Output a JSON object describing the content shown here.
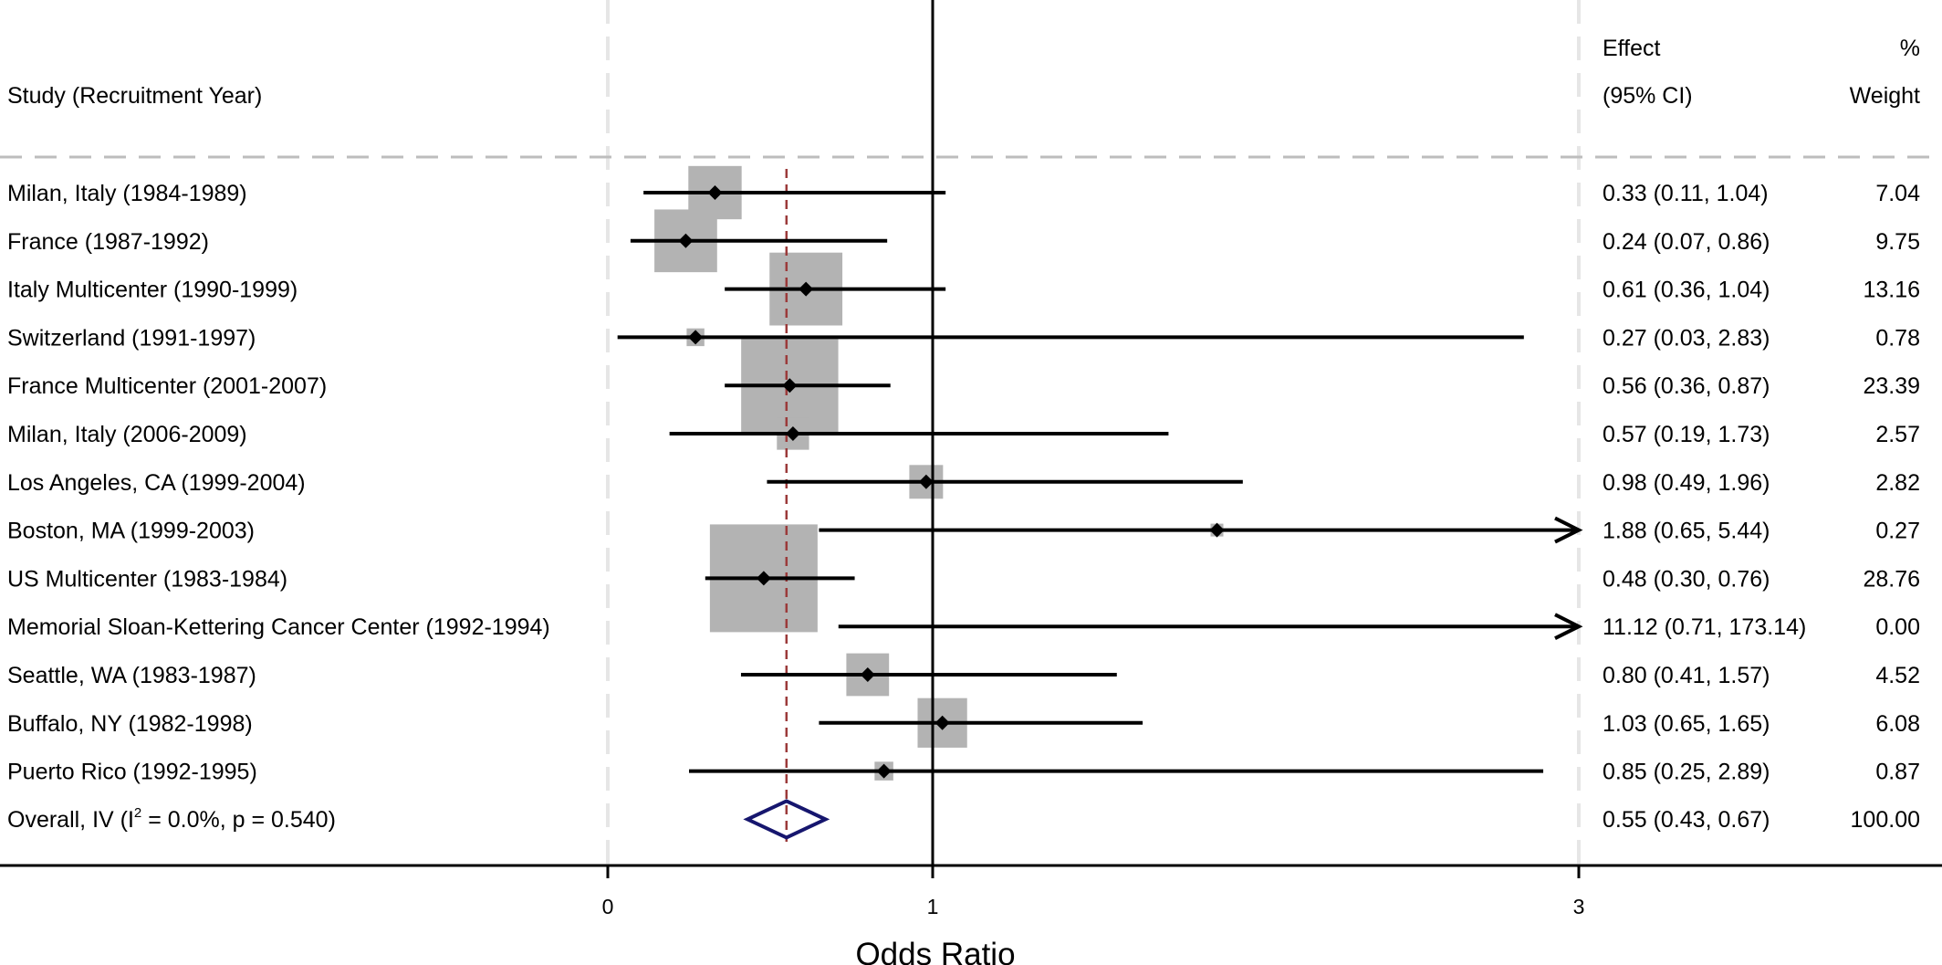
{
  "chart_data": {
    "type": "forest",
    "columns": {
      "study": "Study (Recruitment Year)",
      "effect_line1": "Effect",
      "effect_line2": "(95% CI)",
      "weight_line1": "%",
      "weight_line2": "Weight"
    },
    "xlabel": "Odds Ratio",
    "xticks": [
      {
        "value": 0,
        "label": "0"
      },
      {
        "value": 1,
        "label": "1"
      },
      {
        "value": 3,
        "label": "3"
      }
    ],
    "xlim": [
      0,
      3
    ],
    "null_line": 1,
    "overall_line": 0.55,
    "studies": [
      {
        "label": "Milan, Italy (1984-1989)",
        "effect": 0.33,
        "lower": 0.11,
        "upper": 1.04,
        "ci_text": "0.33 (0.11, 1.04)",
        "weight": 7.04,
        "weight_text": "7.04"
      },
      {
        "label": "France (1987-1992)",
        "effect": 0.24,
        "lower": 0.07,
        "upper": 0.86,
        "ci_text": "0.24 (0.07, 0.86)",
        "weight": 9.75,
        "weight_text": "9.75"
      },
      {
        "label": "Italy Multicenter  (1990-1999)",
        "effect": 0.61,
        "lower": 0.36,
        "upper": 1.04,
        "ci_text": "0.61 (0.36, 1.04)",
        "weight": 13.16,
        "weight_text": "13.16"
      },
      {
        "label": "Switzerland (1991-1997)",
        "effect": 0.27,
        "lower": 0.03,
        "upper": 2.83,
        "ci_text": "0.27 (0.03, 2.83)",
        "weight": 0.78,
        "weight_text": "0.78"
      },
      {
        "label": "France Multicenter (2001-2007)",
        "effect": 0.56,
        "lower": 0.36,
        "upper": 0.87,
        "ci_text": "0.56 (0.36, 0.87)",
        "weight": 23.39,
        "weight_text": "23.39"
      },
      {
        "label": "Milan, Italy (2006-2009)",
        "effect": 0.57,
        "lower": 0.19,
        "upper": 1.73,
        "ci_text": "0.57 (0.19, 1.73)",
        "weight": 2.57,
        "weight_text": "2.57"
      },
      {
        "label": "Los Angeles, CA (1999-2004)",
        "effect": 0.98,
        "lower": 0.49,
        "upper": 1.96,
        "ci_text": "0.98 (0.49, 1.96)",
        "weight": 2.82,
        "weight_text": "2.82"
      },
      {
        "label": "Boston, MA  (1999-2003)",
        "effect": 1.88,
        "lower": 0.65,
        "upper": 5.44,
        "ci_text": "1.88 (0.65, 5.44)",
        "weight": 0.27,
        "weight_text": "0.27"
      },
      {
        "label": "US Multicenter (1983-1984)",
        "effect": 0.48,
        "lower": 0.3,
        "upper": 0.76,
        "ci_text": "0.48 (0.30, 0.76)",
        "weight": 28.76,
        "weight_text": "28.76"
      },
      {
        "label": "Memorial Sloan-Kettering Cancer Center (1992-1994)",
        "effect": 11.12,
        "lower": 0.71,
        "upper": 173.14,
        "ci_text": "11.12 (0.71, 173.14)",
        "weight": 0.0,
        "weight_text": "0.00"
      },
      {
        "label": "Seattle, WA  (1983-1987)",
        "effect": 0.8,
        "lower": 0.41,
        "upper": 1.57,
        "ci_text": "0.80 (0.41, 1.57)",
        "weight": 4.52,
        "weight_text": "4.52"
      },
      {
        "label": "Buffalo, NY (1982-1998)",
        "effect": 1.03,
        "lower": 0.65,
        "upper": 1.65,
        "ci_text": "1.03 (0.65, 1.65)",
        "weight": 6.08,
        "weight_text": "6.08"
      },
      {
        "label": "Puerto Rico (1992-1995)",
        "effect": 0.85,
        "lower": 0.25,
        "upper": 2.89,
        "ci_text": "0.85 (0.25, 2.89)",
        "weight": 0.87,
        "weight_text": "0.87"
      }
    ],
    "overall": {
      "label_prefix": "Overall, IV (I",
      "label_sup": "2",
      "label_suffix": " = 0.0%, p = 0.540)",
      "effect": 0.55,
      "lower": 0.43,
      "upper": 0.67,
      "ci_text": "0.55 (0.43, 0.67)",
      "weight_text": "100.00"
    },
    "colors": {
      "weight_box": "#b3b3b3",
      "overall_line": "#9b3a3a",
      "overall_diamond": "#16166e",
      "grid": "#e6e6e6",
      "axis": "#000000"
    }
  }
}
